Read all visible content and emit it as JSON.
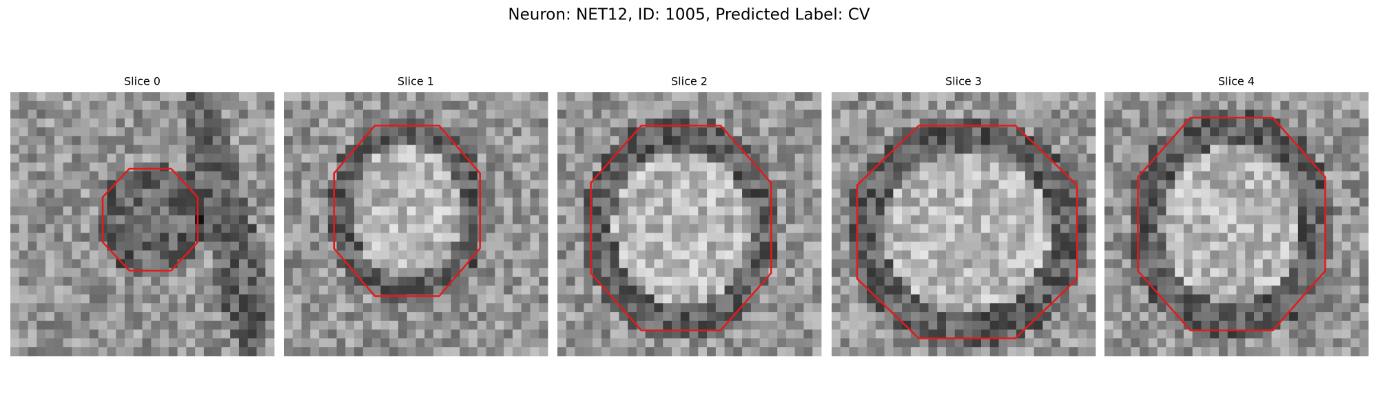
{
  "title": "Neuron: NET12, ID: 1005, Predicted Label: CV",
  "panels": [
    {
      "title": "Slice 0"
    },
    {
      "title": "Slice 1"
    },
    {
      "title": "Slice 2"
    },
    {
      "title": "Slice 3"
    },
    {
      "title": "Slice 4"
    }
  ]
}
